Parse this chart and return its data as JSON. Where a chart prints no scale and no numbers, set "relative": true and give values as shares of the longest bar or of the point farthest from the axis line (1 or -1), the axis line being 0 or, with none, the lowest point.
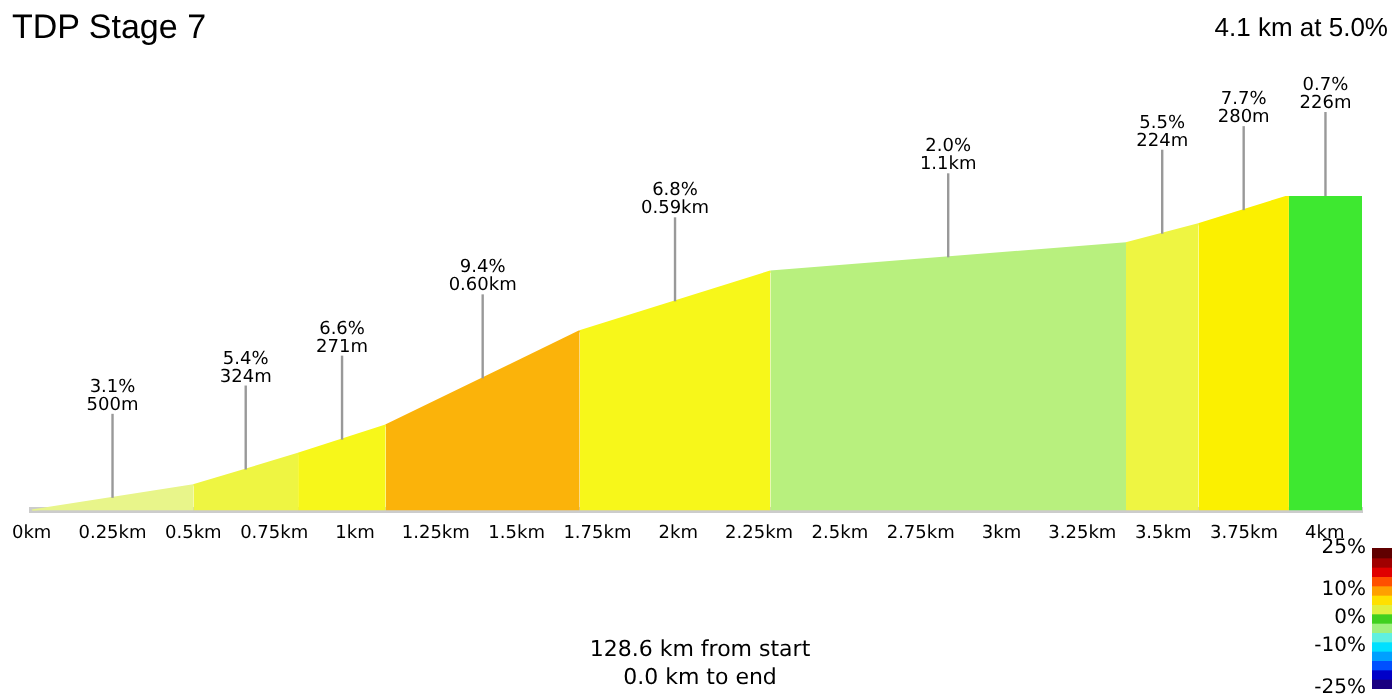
{
  "chart_data": {
    "type": "area",
    "title": "TDP Stage 7",
    "subtitle": "4.1 km at 5.0%",
    "relative": true,
    "grid": false,
    "legend": false,
    "tick_labels": "x",
    "xlim": [
      0,
      4.115
    ],
    "xticks": [
      {
        "value": 0,
        "label": "0km"
      },
      {
        "value": 0.25,
        "label": "0.25km"
      },
      {
        "value": 0.5,
        "label": "0.5km"
      },
      {
        "value": 0.75,
        "label": "0.75km"
      },
      {
        "value": 1,
        "label": "1km"
      },
      {
        "value": 1.25,
        "label": "1.25km"
      },
      {
        "value": 1.5,
        "label": "1.5km"
      },
      {
        "value": 1.75,
        "label": "1.75km"
      },
      {
        "value": 2,
        "label": "2km"
      },
      {
        "value": 2.25,
        "label": "2.25km"
      },
      {
        "value": 2.5,
        "label": "2.5km"
      },
      {
        "value": 2.75,
        "label": "2.75km"
      },
      {
        "value": 3,
        "label": "3km"
      },
      {
        "value": 3.25,
        "label": "3.25km"
      },
      {
        "value": 3.5,
        "label": "3.5km"
      },
      {
        "value": 3.75,
        "label": "3.75km"
      },
      {
        "value": 4,
        "label": "4km"
      }
    ],
    "series": [
      {
        "color": "#e8f58a",
        "x": [
          0,
          0.5
        ],
        "values": [
          0,
          0.08
        ]
      },
      {
        "color": "#eef542",
        "x": [
          0.5,
          0.824
        ],
        "values": [
          0.08,
          0.18
        ]
      },
      {
        "color": "#f7f71a",
        "x": [
          0.824,
          1.095
        ],
        "values": [
          0.18,
          0.27
        ]
      },
      {
        "color": "#fbb30a",
        "x": [
          1.095,
          1.695
        ],
        "values": [
          0.27,
          0.57
        ]
      },
      {
        "color": "#f7f71a",
        "x": [
          1.695,
          2.285
        ],
        "values": [
          0.57,
          0.76
        ]
      },
      {
        "color": "#b8f07e",
        "x": [
          2.285,
          3.385
        ],
        "values": [
          0.76,
          0.85
        ]
      },
      {
        "color": "#eef542",
        "x": [
          3.385,
          3.609
        ],
        "values": [
          0.85,
          0.91
        ]
      },
      {
        "color": "#fbf000",
        "x": [
          3.609,
          3.889
        ],
        "values": [
          0.91,
          1
        ]
      },
      {
        "color": "#3ee830",
        "x": [
          3.889,
          4.115
        ],
        "values": [
          1,
          1
        ]
      }
    ],
    "annotations": [
      {
        "text": "3.1%\n500m",
        "x": 0.25,
        "y": 0.04
      },
      {
        "text": "5.4%\n324m",
        "x": 0.662,
        "y": 0.13
      },
      {
        "text": "6.6%\n271m",
        "x": 0.96,
        "y": 0.225
      },
      {
        "text": "9.4%\n0.60km",
        "x": 1.395,
        "y": 0.42
      },
      {
        "text": "6.8%\n0.59km",
        "x": 1.99,
        "y": 0.665
      },
      {
        "text": "2.0%\n1.1km",
        "x": 2.835,
        "y": 0.805
      },
      {
        "text": "5.5%\n224m",
        "x": 3.497,
        "y": 0.88
      },
      {
        "text": "7.7%\n280m",
        "x": 3.749,
        "y": 0.955
      },
      {
        "text": "0.7%\n226m",
        "x": 4.002,
        "y": 1
      },
      "128.6 km from start",
      "0.0 km to end"
    ],
    "clim": [
      -25,
      25
    ],
    "cticks": [
      {
        "value": 25,
        "label": "25%"
      },
      {
        "value": 10,
        "label": "10%"
      },
      {
        "value": 0,
        "label": "0%"
      },
      {
        "value": -10,
        "label": "-10%"
      },
      {
        "value": -25,
        "label": "-25%"
      }
    ]
  }
}
